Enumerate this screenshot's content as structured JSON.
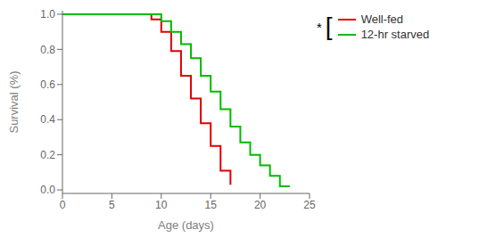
{
  "chart_data": {
    "type": "step",
    "xlabel": "Age (days)",
    "ylabel": "Survival (%)",
    "xlim": [
      0,
      25
    ],
    "xticks": [
      0,
      5,
      10,
      15,
      20,
      25
    ],
    "ylim": [
      -0.02,
      1.02
    ],
    "yticks": [
      {
        "value": 0,
        "label": "0.0"
      },
      0.2,
      0.4,
      0.6,
      0.8,
      {
        "value": 1,
        "label": "1.0"
      }
    ],
    "legend": "right",
    "annotations": [
      "*",
      "["
    ],
    "series": [
      {
        "name": "Well-fed",
        "color": "#e00000",
        "x": [
          0,
          8,
          9,
          9,
          10,
          10,
          11,
          11,
          12,
          12,
          13,
          13,
          14,
          14,
          15,
          15,
          16,
          16,
          17,
          17
        ],
        "values": [
          1.0,
          1.0,
          1.0,
          0.97,
          0.97,
          0.9,
          0.9,
          0.79,
          0.79,
          0.65,
          0.65,
          0.52,
          0.52,
          0.38,
          0.38,
          0.25,
          0.25,
          0.11,
          0.11,
          0.03
        ]
      },
      {
        "name": "12-hr starved",
        "color": "#00bb00",
        "x": [
          0,
          9,
          10,
          10,
          11,
          11,
          12,
          12,
          13,
          13,
          14,
          14,
          15,
          15,
          16,
          16,
          17,
          17,
          18,
          18,
          19,
          19,
          20,
          20,
          21,
          21,
          22,
          22,
          23
        ],
        "values": [
          1.0,
          1.0,
          1.0,
          0.96,
          0.96,
          0.9,
          0.9,
          0.83,
          0.83,
          0.75,
          0.75,
          0.65,
          0.65,
          0.56,
          0.56,
          0.46,
          0.46,
          0.36,
          0.36,
          0.27,
          0.27,
          0.2,
          0.2,
          0.14,
          0.14,
          0.08,
          0.08,
          0.02,
          0.02
        ]
      }
    ]
  }
}
